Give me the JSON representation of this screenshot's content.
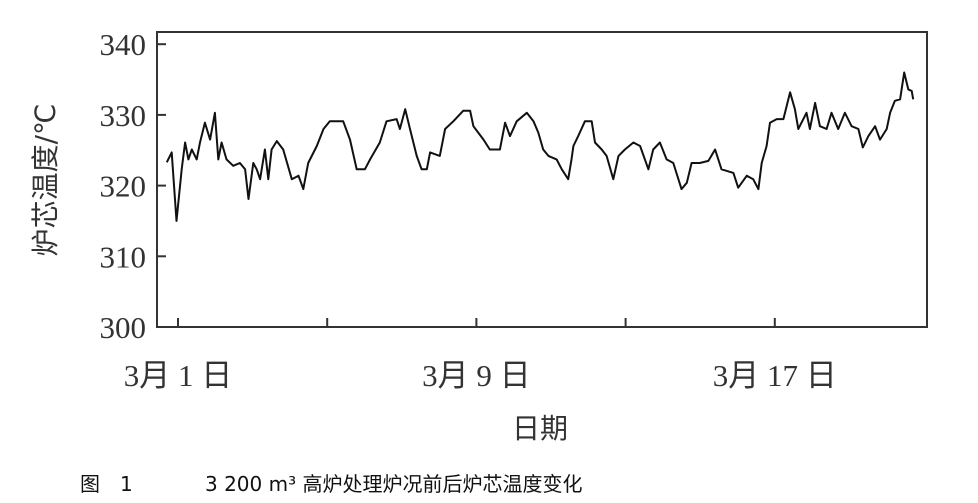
{
  "chart_data": {
    "type": "line",
    "xlabel": "日期",
    "ylabel": "炉芯温度/℃",
    "ylim": [
      300,
      340
    ],
    "yticks": [
      "300",
      "310",
      "320",
      "330",
      "340"
    ],
    "xticks": [
      {
        "day": 1,
        "label": "3月 1 日"
      },
      {
        "day": 9,
        "label": "3月 9 日"
      },
      {
        "day": 17,
        "label": "3月 17 日"
      }
    ],
    "minor_xticks": [
      5,
      13
    ],
    "grid": false,
    "series": [
      {
        "x": [
          0.7,
          0.83,
          0.96,
          1.1,
          1.19,
          1.28,
          1.37,
          1.5,
          1.59,
          1.72,
          1.86,
          1.99,
          2.08,
          2.17,
          2.3,
          2.48,
          2.66,
          2.8,
          2.89,
          3.02,
          3.11,
          3.2,
          3.33,
          3.42,
          3.51,
          3.65,
          3.82,
          4.05,
          4.23,
          4.36,
          4.49,
          4.72,
          4.9,
          5.07,
          5.43,
          5.61,
          5.79,
          6.01,
          6.15,
          6.41,
          6.59,
          6.86,
          6.95,
          7.09,
          7.22,
          7.4,
          7.53,
          7.67,
          7.76,
          8.02,
          8.16,
          8.38,
          8.65,
          8.83,
          8.92,
          9.19,
          9.36,
          9.63,
          9.77,
          9.9,
          10.08,
          10.35,
          10.53,
          10.66,
          10.79,
          10.93,
          11.15,
          11.29,
          11.46,
          11.55,
          11.6,
          11.73,
          11.91,
          12.09,
          12.18,
          12.36,
          12.49,
          12.67,
          12.81,
          12.98,
          13.21,
          13.39,
          13.61,
          13.74,
          13.92,
          14.1,
          14.28,
          14.5,
          14.64,
          14.77,
          14.99,
          15.22,
          15.4,
          15.57,
          15.89,
          16.02,
          16.25,
          16.42,
          16.56,
          16.65,
          16.78,
          16.87,
          17.05,
          17.23,
          17.41,
          17.54,
          17.63,
          17.85,
          17.94,
          18.08,
          18.21,
          18.39,
          18.52,
          18.7,
          18.88,
          19.06,
          19.24,
          19.36,
          19.51,
          19.69,
          19.82,
          20.0,
          20.09,
          20.22,
          20.36,
          20.47,
          20.58,
          20.67,
          20.71
        ],
        "y": [
          323.3,
          324.7,
          315.0,
          322.3,
          326.1,
          323.7,
          325.1,
          323.7,
          326.1,
          328.9,
          326.5,
          330.3,
          323.7,
          326.1,
          323.7,
          322.8,
          323.2,
          322.3,
          318.1,
          323.2,
          322.3,
          320.9,
          325.1,
          320.9,
          325.1,
          326.3,
          325.1,
          320.9,
          321.4,
          319.5,
          323.2,
          325.6,
          328.0,
          329.1,
          329.1,
          326.5,
          322.3,
          322.3,
          323.7,
          326.1,
          329.1,
          329.4,
          328.0,
          330.8,
          328.0,
          324.2,
          322.3,
          322.3,
          324.7,
          324.2,
          328.0,
          329.1,
          330.6,
          330.6,
          328.4,
          326.5,
          325.1,
          325.1,
          328.9,
          327.0,
          329.1,
          330.3,
          329.1,
          327.5,
          325.1,
          324.2,
          323.7,
          322.3,
          320.9,
          323.7,
          325.6,
          327.0,
          329.1,
          329.1,
          326.1,
          325.1,
          324.2,
          320.9,
          324.2,
          325.1,
          326.1,
          325.6,
          322.3,
          325.1,
          326.1,
          323.7,
          323.2,
          319.5,
          320.4,
          323.2,
          323.2,
          323.5,
          325.1,
          322.3,
          321.8,
          319.7,
          321.4,
          320.9,
          319.5,
          323.2,
          325.6,
          328.9,
          329.4,
          329.4,
          333.2,
          330.8,
          328.0,
          330.3,
          328.0,
          331.7,
          328.4,
          328.0,
          330.3,
          328.0,
          330.3,
          328.4,
          328.0,
          325.4,
          327.0,
          328.4,
          326.5,
          328.0,
          330.3,
          332.0,
          332.2,
          336.0,
          333.6,
          333.4,
          332.2
        ]
      }
    ]
  },
  "caption": {
    "figure_number": "图　1",
    "text": "3 200 m³ 高炉处理炉况前后炉芯温度变化"
  }
}
